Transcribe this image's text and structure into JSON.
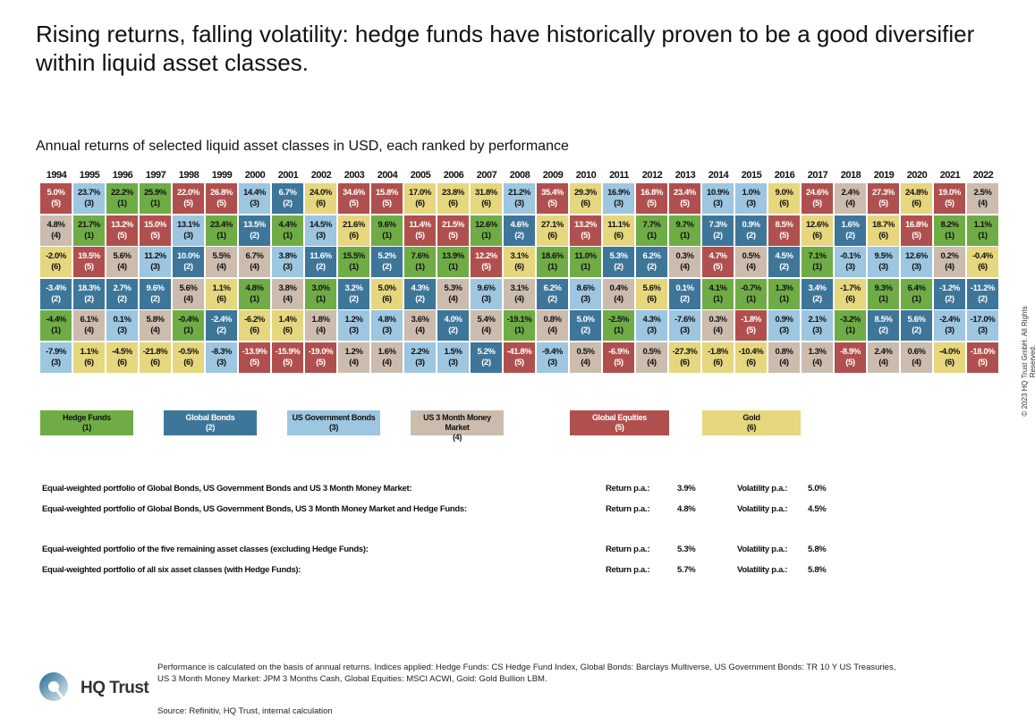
{
  "title": "Rising returns, falling volatility: hedge funds have historically proven to be a good diversifier within liquid asset classes.",
  "subtitle": "Annual returns of selected liquid asset classes in USD, each ranked by performance",
  "colors": {
    "1": "#6fac46",
    "2": "#3e769a",
    "3": "#9dc6e0",
    "4": "#cbbcad",
    "5": "#b0504e",
    "6": "#e6d67e"
  },
  "chart_data": {
    "type": "table",
    "title": "Annual returns of selected liquid asset classes in USD, each ranked by performance",
    "legend": [
      {
        "name": "Hedge Funds",
        "code": "(1)"
      },
      {
        "name": "Global Bonds",
        "code": "(2)"
      },
      {
        "name": "US Government Bonds",
        "code": "(3)"
      },
      {
        "name": "US 3 Month Money Market",
        "code": "(4)"
      },
      {
        "name": "Global Equities",
        "code": "(5)"
      },
      {
        "name": "Gold",
        "code": "(6)"
      }
    ],
    "columns": [
      {
        "year": "1994",
        "cells": [
          [
            "5.0%",
            5
          ],
          [
            "4.8%",
            4
          ],
          [
            "-2.0%",
            6
          ],
          [
            "-3.4%",
            2
          ],
          [
            "-4.4%",
            1
          ],
          [
            "-7.9%",
            3
          ]
        ]
      },
      {
        "year": "1995",
        "cells": [
          [
            "23.7%",
            3
          ],
          [
            "21.7%",
            1
          ],
          [
            "19.5%",
            5
          ],
          [
            "18.3%",
            2
          ],
          [
            "6.1%",
            4
          ],
          [
            "1.1%",
            6
          ]
        ]
      },
      {
        "year": "1996",
        "cells": [
          [
            "22.2%",
            1
          ],
          [
            "13.2%",
            5
          ],
          [
            "5.6%",
            4
          ],
          [
            "2.7%",
            2
          ],
          [
            "0.1%",
            3
          ],
          [
            "-4.5%",
            6
          ]
        ]
      },
      {
        "year": "1997",
        "cells": [
          [
            "25.9%",
            1
          ],
          [
            "15.0%",
            5
          ],
          [
            "11.2%",
            3
          ],
          [
            "9.6%",
            2
          ],
          [
            "5.8%",
            4
          ],
          [
            "-21.8%",
            6
          ]
        ]
      },
      {
        "year": "1998",
        "cells": [
          [
            "22.0%",
            5
          ],
          [
            "13.1%",
            3
          ],
          [
            "10.0%",
            2
          ],
          [
            "5.6%",
            4
          ],
          [
            "-0.4%",
            1
          ],
          [
            "-0.5%",
            6
          ]
        ]
      },
      {
        "year": "1999",
        "cells": [
          [
            "26.8%",
            5
          ],
          [
            "23.4%",
            1
          ],
          [
            "5.5%",
            4
          ],
          [
            "1.1%",
            6
          ],
          [
            "-2.4%",
            2
          ],
          [
            "-8.3%",
            3
          ]
        ]
      },
      {
        "year": "2000",
        "cells": [
          [
            "14.4%",
            3
          ],
          [
            "13.5%",
            2
          ],
          [
            "6.7%",
            4
          ],
          [
            "4.8%",
            1
          ],
          [
            "-6.2%",
            6
          ],
          [
            "-13.9%",
            5
          ]
        ]
      },
      {
        "year": "2001",
        "cells": [
          [
            "6.7%",
            2
          ],
          [
            "4.4%",
            1
          ],
          [
            "3.8%",
            3
          ],
          [
            "3.8%",
            4
          ],
          [
            "1.4%",
            6
          ],
          [
            "-15.9%",
            5
          ]
        ]
      },
      {
        "year": "2002",
        "cells": [
          [
            "24.0%",
            6
          ],
          [
            "14.5%",
            3
          ],
          [
            "11.6%",
            2
          ],
          [
            "3.0%",
            1
          ],
          [
            "1.8%",
            4
          ],
          [
            "-19.0%",
            5
          ]
        ]
      },
      {
        "year": "2003",
        "cells": [
          [
            "34.6%",
            5
          ],
          [
            "21.6%",
            6
          ],
          [
            "15.5%",
            1
          ],
          [
            "3.2%",
            2
          ],
          [
            "1.2%",
            3
          ],
          [
            "1.2%",
            4
          ]
        ]
      },
      {
        "year": "2004",
        "cells": [
          [
            "15.8%",
            5
          ],
          [
            "9.6%",
            1
          ],
          [
            "5.2%",
            2
          ],
          [
            "5.0%",
            6
          ],
          [
            "4.8%",
            3
          ],
          [
            "1.6%",
            4
          ]
        ]
      },
      {
        "year": "2005",
        "cells": [
          [
            "17.0%",
            6
          ],
          [
            "11.4%",
            5
          ],
          [
            "7.6%",
            1
          ],
          [
            "4.3%",
            2
          ],
          [
            "3.6%",
            4
          ],
          [
            "2.2%",
            3
          ]
        ]
      },
      {
        "year": "2006",
        "cells": [
          [
            "23.8%",
            6
          ],
          [
            "21.5%",
            5
          ],
          [
            "13.9%",
            1
          ],
          [
            "5.3%",
            4
          ],
          [
            "4.0%",
            2
          ],
          [
            "1.5%",
            3
          ]
        ]
      },
      {
        "year": "2007",
        "cells": [
          [
            "31.8%",
            6
          ],
          [
            "12.6%",
            1
          ],
          [
            "12.2%",
            5
          ],
          [
            "9.6%",
            3
          ],
          [
            "5.4%",
            4
          ],
          [
            "5.2%",
            2
          ]
        ]
      },
      {
        "year": "2008",
        "cells": [
          [
            "21.2%",
            3
          ],
          [
            "4.6%",
            2
          ],
          [
            "3.1%",
            6
          ],
          [
            "3.1%",
            4
          ],
          [
            "-19.1%",
            1
          ],
          [
            "-41.8%",
            5
          ]
        ]
      },
      {
        "year": "2009",
        "cells": [
          [
            "35.4%",
            5
          ],
          [
            "27.1%",
            6
          ],
          [
            "18.6%",
            1
          ],
          [
            "6.2%",
            2
          ],
          [
            "0.8%",
            4
          ],
          [
            "-9.4%",
            3
          ]
        ]
      },
      {
        "year": "2010",
        "cells": [
          [
            "29.3%",
            6
          ],
          [
            "13.2%",
            5
          ],
          [
            "11.0%",
            1
          ],
          [
            "8.6%",
            3
          ],
          [
            "5.0%",
            2
          ],
          [
            "0.5%",
            4
          ]
        ]
      },
      {
        "year": "2011",
        "cells": [
          [
            "16.9%",
            3
          ],
          [
            "11.1%",
            6
          ],
          [
            "5.3%",
            2
          ],
          [
            "0.4%",
            4
          ],
          [
            "-2.5%",
            1
          ],
          [
            "-6.9%",
            5
          ]
        ]
      },
      {
        "year": "2012",
        "cells": [
          [
            "16.8%",
            5
          ],
          [
            "7.7%",
            1
          ],
          [
            "6.2%",
            2
          ],
          [
            "5.6%",
            6
          ],
          [
            "4.3%",
            3
          ],
          [
            "0.5%",
            4
          ]
        ]
      },
      {
        "year": "2013",
        "cells": [
          [
            "23.4%",
            5
          ],
          [
            "9.7%",
            1
          ],
          [
            "0.3%",
            4
          ],
          [
            "0.1%",
            2
          ],
          [
            "-7.6%",
            3
          ],
          [
            "-27.3%",
            6
          ]
        ]
      },
      {
        "year": "2014",
        "cells": [
          [
            "10.9%",
            3
          ],
          [
            "7.3%",
            2
          ],
          [
            "4.7%",
            5
          ],
          [
            "4.1%",
            1
          ],
          [
            "0.3%",
            4
          ],
          [
            "-1.8%",
            6
          ]
        ]
      },
      {
        "year": "2015",
        "cells": [
          [
            "1.0%",
            3
          ],
          [
            "0.9%",
            2
          ],
          [
            "0.5%",
            4
          ],
          [
            "-0.7%",
            1
          ],
          [
            "-1.8%",
            5
          ],
          [
            "-10.4%",
            6
          ]
        ]
      },
      {
        "year": "2016",
        "cells": [
          [
            "9.0%",
            6
          ],
          [
            "8.5%",
            5
          ],
          [
            "4.5%",
            2
          ],
          [
            "1.3%",
            1
          ],
          [
            "0.9%",
            3
          ],
          [
            "0.8%",
            4
          ]
        ]
      },
      {
        "year": "2017",
        "cells": [
          [
            "24.6%",
            5
          ],
          [
            "12.6%",
            6
          ],
          [
            "7.1%",
            1
          ],
          [
            "3.4%",
            2
          ],
          [
            "2.1%",
            3
          ],
          [
            "1.3%",
            4
          ]
        ]
      },
      {
        "year": "2018",
        "cells": [
          [
            "2.4%",
            4
          ],
          [
            "1.6%",
            2
          ],
          [
            "-0.1%",
            3
          ],
          [
            "-1.7%",
            6
          ],
          [
            "-3.2%",
            1
          ],
          [
            "-8.9%",
            5
          ]
        ]
      },
      {
        "year": "2019",
        "cells": [
          [
            "27.3%",
            5
          ],
          [
            "18.7%",
            6
          ],
          [
            "9.5%",
            3
          ],
          [
            "9.3%",
            1
          ],
          [
            "8.5%",
            2
          ],
          [
            "2.4%",
            4
          ]
        ]
      },
      {
        "year": "2020",
        "cells": [
          [
            "24.8%",
            6
          ],
          [
            "16.8%",
            5
          ],
          [
            "12.6%",
            3
          ],
          [
            "6.4%",
            1
          ],
          [
            "5.6%",
            2
          ],
          [
            "0.6%",
            4
          ]
        ]
      },
      {
        "year": "2021",
        "cells": [
          [
            "19.0%",
            5
          ],
          [
            "8.2%",
            1
          ],
          [
            "0.2%",
            4
          ],
          [
            "-1.2%",
            2
          ],
          [
            "-2.4%",
            3
          ],
          [
            "-4.0%",
            6
          ]
        ]
      },
      {
        "year": "2022",
        "cells": [
          [
            "2.5%",
            4
          ],
          [
            "1.1%",
            1
          ],
          [
            "-0.4%",
            6
          ],
          [
            "-11.2%",
            2
          ],
          [
            "-17.0%",
            3
          ],
          [
            "-18.0%",
            5
          ]
        ]
      }
    ]
  },
  "portfolios": [
    {
      "label": "Equal-weighted portfolio of Global Bonds, US Government Bonds and US 3 Month Money Market:",
      "return_label": "Return p.a.:",
      "return": "3.9%",
      "vol_label": "Volatility p.a.:",
      "vol": "5.0%"
    },
    {
      "label": "Equal-weighted portfolio of Global Bonds, US Government Bonds, US 3 Month Money Market and Hedge Funds:",
      "return_label": "Return p.a.:",
      "return": "4.8%",
      "vol_label": "Volatility p.a.:",
      "vol": "4.5%"
    },
    {
      "label": "Equal-weighted portfolio of the five remaining asset classes (excluding Hedge Funds):",
      "return_label": "Return p.a.:",
      "return": "5.3%",
      "vol_label": "Volatility p.a.:",
      "vol": "5.8%"
    },
    {
      "label": "Equal-weighted portfolio of all six asset classes (with Hedge Funds):",
      "return_label": "Return p.a.:",
      "return": "5.7%",
      "vol_label": "Volatility p.a.:",
      "vol": "5.8%"
    }
  ],
  "footer": {
    "note_line1": "Performance is calculated on the basis of annual returns. Indices applied: Hedge Funds: CS Hedge Fund Index, Global Bonds: Barclays Multiverse, US Government Bonds: TR 10 Y US Treasuries,",
    "note_line2": "US 3 Month Money Market: JPM 3 Months Cash, Global Equities: MSCI ACWI, Gold: Gold Bullion LBM.",
    "source": "Source: Refinitiv, HQ Trust, internal calculation",
    "copyright": "© 2023 HQ Trust GmbH. All Rights Reserved.",
    "logo_text": "HQ Trust"
  }
}
